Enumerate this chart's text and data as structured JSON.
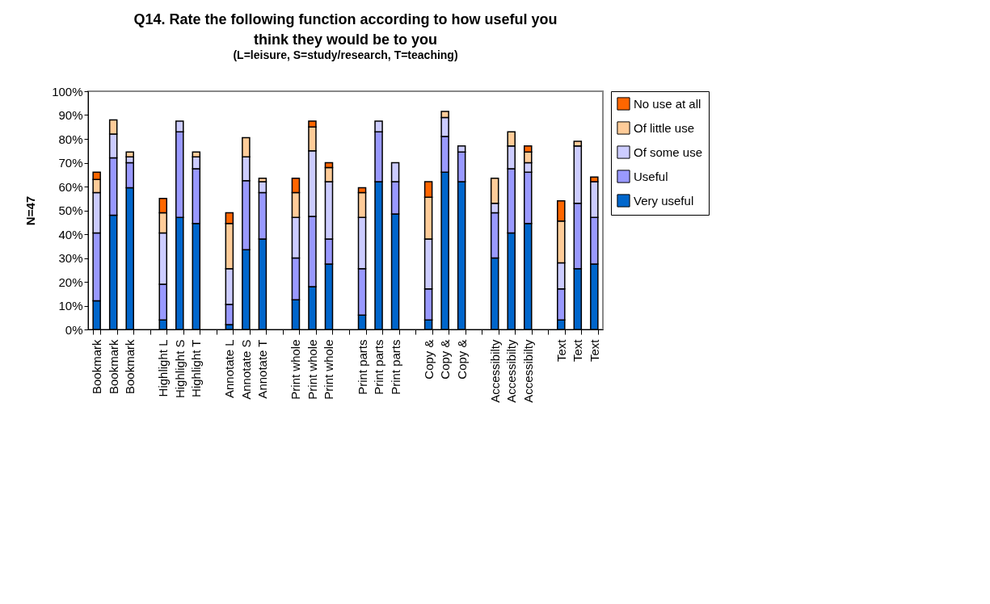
{
  "chart_data": {
    "type": "bar",
    "stacked": true,
    "title": "Q14. Rate the following function according to how useful you think they would be to you",
    "subtitle": "(L=leisure, S=study/research, T=teaching)",
    "ylabel": "N=47",
    "categories": [
      "Bookmark",
      "Bookmark",
      "Bookmark",
      null,
      "Highlight L",
      "Highlight S",
      "Highlight T",
      null,
      "Annotate L",
      "Annotate S",
      "Annotate T",
      null,
      "Print whole",
      "Print whole",
      "Print whole",
      null,
      "Print parts",
      "Print parts",
      "Print parts",
      null,
      "Copy &",
      "Copy &",
      "Copy &",
      null,
      "Accessibilty",
      "Accessibilty",
      "Accessibilty",
      null,
      "Text",
      "Text",
      "Text"
    ],
    "series": [
      {
        "name": "Very useful",
        "color": "#0066cc",
        "values": [
          12,
          48,
          59.5,
          null,
          4,
          47,
          44.5,
          null,
          2,
          33.5,
          38,
          null,
          12.5,
          18,
          27.5,
          null,
          6,
          62,
          48.5,
          null,
          4,
          66,
          62,
          null,
          30,
          40.5,
          44.5,
          null,
          4,
          25.5,
          27.5
        ]
      },
      {
        "name": "Useful",
        "color": "#9999ff",
        "values": [
          28.5,
          24,
          10.5,
          null,
          15,
          36,
          23,
          null,
          8.5,
          29,
          19.5,
          null,
          17.5,
          29.5,
          10.5,
          null,
          19.5,
          21,
          13.5,
          null,
          13,
          15,
          12.5,
          null,
          19,
          27,
          21.5,
          null,
          13,
          27.5,
          19.5
        ]
      },
      {
        "name": "Of some use",
        "color": "#ccccff",
        "values": [
          17,
          10,
          2.5,
          null,
          21.5,
          4.5,
          5,
          null,
          15,
          10,
          4.5,
          null,
          17,
          27.5,
          24,
          null,
          21.5,
          4.5,
          8,
          null,
          21,
          8,
          2.5,
          null,
          4,
          9.5,
          4,
          null,
          11,
          24,
          15
        ]
      },
      {
        "name": "Of little use",
        "color": "#ffcc99",
        "values": [
          5.5,
          6,
          2,
          null,
          8.5,
          null,
          2,
          null,
          19,
          8,
          1.5,
          null,
          10.5,
          10,
          6,
          null,
          10.5,
          null,
          null,
          null,
          17.5,
          2.5,
          null,
          null,
          10.5,
          6,
          4.5,
          null,
          17.5,
          2,
          null
        ]
      },
      {
        "name": "No use at all",
        "color": "#ff6600",
        "values": [
          3,
          null,
          null,
          null,
          6,
          null,
          null,
          null,
          4.5,
          null,
          null,
          null,
          6,
          2.5,
          2,
          null,
          2,
          null,
          null,
          null,
          6.5,
          null,
          null,
          null,
          null,
          null,
          2.5,
          null,
          8.5,
          null,
          2
        ]
      }
    ],
    "ylim": [
      0,
      100
    ],
    "yticks": [
      {
        "value": 0,
        "label": "0%"
      },
      {
        "value": 10,
        "label": "10%"
      },
      {
        "value": 20,
        "label": "20%"
      },
      {
        "value": 30,
        "label": "30%"
      },
      {
        "value": 40,
        "label": "40%"
      },
      {
        "value": 50,
        "label": "50%"
      },
      {
        "value": 60,
        "label": "60%"
      },
      {
        "value": 70,
        "label": "70%"
      },
      {
        "value": 80,
        "label": "80%"
      },
      {
        "value": 90,
        "label": "90%"
      },
      {
        "value": 100,
        "label": "100%"
      }
    ],
    "legend": "right"
  }
}
